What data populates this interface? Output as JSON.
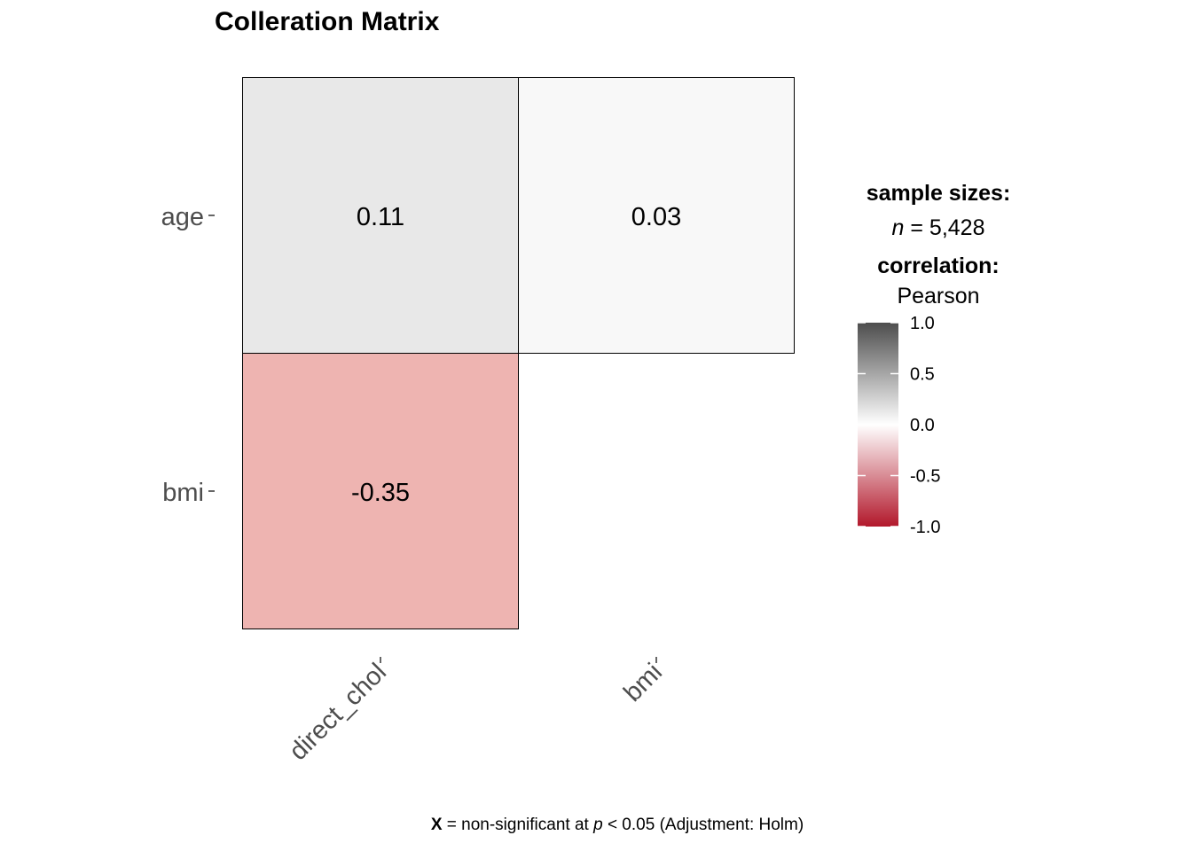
{
  "title": "Colleration Matrix",
  "chart_data": {
    "type": "heatmap",
    "title": "Colleration Matrix",
    "rows": [
      "age",
      "bmi"
    ],
    "columns": [
      "direct_chol",
      "bmi"
    ],
    "cells": [
      {
        "row": "age",
        "col": "direct_chol",
        "value": 0.11,
        "label": "0.11",
        "color": "#e8e8e8"
      },
      {
        "row": "age",
        "col": "bmi",
        "value": 0.03,
        "label": "0.03",
        "color": "#f8f8f8"
      },
      {
        "row": "bmi",
        "col": "direct_chol",
        "value": -0.35,
        "label": "-0.35",
        "color": "#eeb4b1"
      }
    ],
    "legend": {
      "range": [
        -1,
        1
      ],
      "ticks": [
        "1.0",
        "0.5",
        "0.0",
        "-0.5",
        "-1.0"
      ],
      "tick_values": [
        1.0,
        0.5,
        0.0,
        -0.5,
        -1.0
      ],
      "colors": {
        "high": "#4d4d4d",
        "mid": "#ffffff",
        "low": "#b2182b"
      }
    }
  },
  "legend_text": {
    "sample_title": "sample sizes:",
    "n_symbol": "n",
    "n_value": "= 5,428",
    "corr_title": "correlation:",
    "corr_method": "Pearson"
  },
  "caption": {
    "x_mark": "X",
    "text1": "= non-significant at",
    "p_symbol": "p",
    "text2": "< 0.05 (Adjustment: Holm)"
  }
}
